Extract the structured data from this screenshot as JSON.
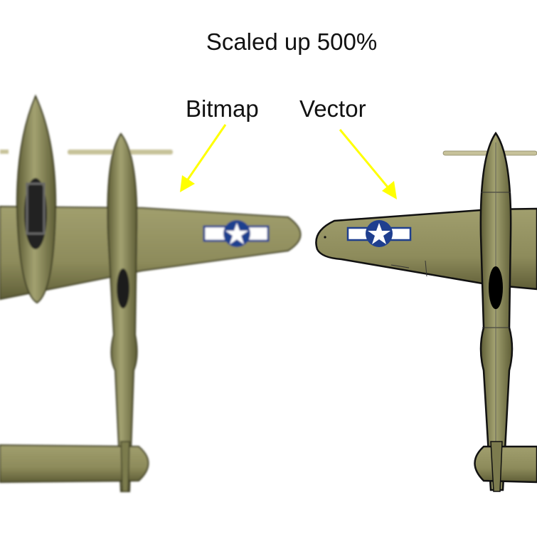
{
  "title": "Scaled up 500%",
  "labels": {
    "bitmap": "Bitmap",
    "vector": "Vector"
  },
  "colors": {
    "olive": "#8c8b5c",
    "olive_dark": "#5e5d36",
    "roundel_blue": "#1f3f8f",
    "arrow": "#ffff00"
  }
}
